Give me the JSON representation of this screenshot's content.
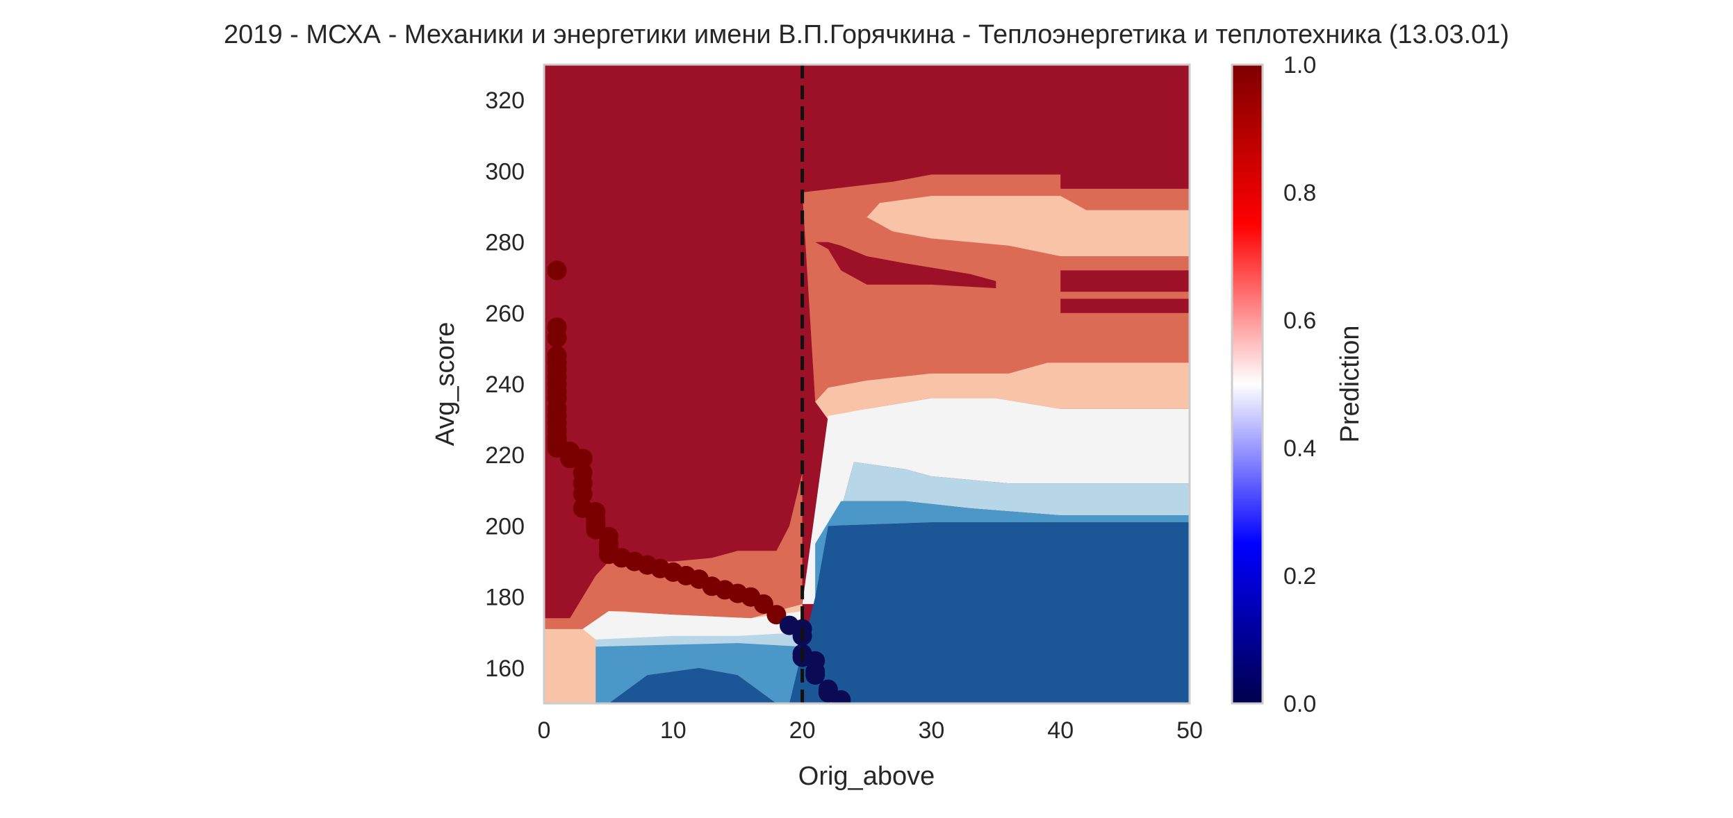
{
  "chart_data": {
    "type": "heatmap",
    "title": "2019 - МСХА - Механики и энергетики имени В.П.Горячкина - Теплоэнергетика и теплотехника (13.03.01)",
    "xlabel": "Orig_above",
    "ylabel": "Avg_score",
    "xlim": [
      0,
      50
    ],
    "ylim": [
      150,
      330
    ],
    "x_ticks": [
      0,
      10,
      20,
      30,
      40,
      50
    ],
    "y_ticks": [
      160,
      180,
      200,
      220,
      240,
      260,
      280,
      300,
      320
    ],
    "grid": false,
    "threshold_line": {
      "x": 20,
      "style": "dashed",
      "color": "#111111"
    },
    "colorbar": {
      "label": "Prediction",
      "range": [
        0,
        1
      ],
      "ticks": [
        "0.0",
        "0.2",
        "0.4",
        "0.6",
        "0.8",
        "1.0"
      ],
      "colormap": "seismic"
    },
    "level_colors": {
      "0.25": "#1b5796",
      "0.35": "#4b98c8",
      "0.45": "#b7d7e8",
      "0.55": "#f4f4f4",
      "0.65": "#f9c3a7",
      "0.75": "#dc6b56",
      "0.85": "#9c1127"
    },
    "regions": [
      {
        "level": 0.85,
        "polygon": [
          [
            0,
            330
          ],
          [
            50,
            330
          ],
          [
            50,
            295
          ],
          [
            40,
            295
          ],
          [
            40,
            299
          ],
          [
            30,
            299
          ],
          [
            27,
            297
          ],
          [
            20,
            294
          ],
          [
            20,
            215
          ],
          [
            19,
            200
          ],
          [
            18,
            193
          ],
          [
            15,
            193
          ],
          [
            13,
            191
          ],
          [
            10,
            190
          ],
          [
            5,
            190
          ],
          [
            4,
            186
          ],
          [
            2,
            174
          ],
          [
            0,
            174
          ]
        ]
      },
      {
        "level": 0.75,
        "polygon": [
          [
            0,
            174
          ],
          [
            2,
            174
          ],
          [
            4,
            186
          ],
          [
            5,
            190
          ],
          [
            10,
            190
          ],
          [
            13,
            191
          ],
          [
            15,
            193
          ],
          [
            18,
            193
          ],
          [
            19,
            200
          ],
          [
            20,
            215
          ],
          [
            20,
            178
          ],
          [
            16,
            174
          ],
          [
            10,
            175
          ],
          [
            6,
            176
          ],
          [
            5,
            176
          ],
          [
            3,
            171
          ],
          [
            0,
            171
          ]
        ]
      },
      {
        "level": 0.75,
        "polygon": [
          [
            20,
            294
          ],
          [
            27,
            297
          ],
          [
            30,
            299
          ],
          [
            40,
            299
          ],
          [
            40,
            295
          ],
          [
            50,
            295
          ],
          [
            50,
            246
          ],
          [
            39,
            246
          ],
          [
            36,
            243
          ],
          [
            30,
            243
          ],
          [
            25,
            241
          ],
          [
            22,
            239
          ],
          [
            21,
            235
          ]
        ]
      },
      {
        "level": 0.85,
        "polygon": [
          [
            21,
            280
          ],
          [
            22,
            278
          ],
          [
            23,
            272
          ],
          [
            25,
            268
          ],
          [
            30,
            268
          ],
          [
            35,
            267
          ],
          [
            35,
            269
          ],
          [
            33,
            271
          ],
          [
            28,
            274
          ],
          [
            25,
            276
          ],
          [
            23,
            279
          ],
          [
            22,
            280
          ]
        ]
      },
      {
        "level": 0.85,
        "polygon": [
          [
            40,
            272
          ],
          [
            50,
            272
          ],
          [
            50,
            266
          ],
          [
            40,
            266
          ]
        ]
      },
      {
        "level": 0.85,
        "polygon": [
          [
            40,
            264
          ],
          [
            50,
            264
          ],
          [
            50,
            260
          ],
          [
            40,
            260
          ]
        ]
      },
      {
        "level": 0.65,
        "polygon": [
          [
            21,
            235
          ],
          [
            22,
            239
          ],
          [
            25,
            241
          ],
          [
            30,
            243
          ],
          [
            36,
            243
          ],
          [
            39,
            246
          ],
          [
            50,
            246
          ],
          [
            50,
            233
          ],
          [
            40,
            233
          ],
          [
            35,
            236
          ],
          [
            30,
            236
          ],
          [
            25,
            233
          ],
          [
            22,
            230
          ]
        ]
      },
      {
        "level": 0.65,
        "polygon": [
          [
            26,
            291
          ],
          [
            30,
            293
          ],
          [
            40,
            293
          ],
          [
            42,
            289
          ],
          [
            50,
            289
          ],
          [
            50,
            276
          ],
          [
            40,
            276
          ],
          [
            36,
            279
          ],
          [
            30,
            281
          ],
          [
            27,
            283
          ],
          [
            25,
            287
          ]
        ]
      },
      {
        "level": 0.65,
        "polygon": [
          [
            0,
            171
          ],
          [
            3,
            171
          ],
          [
            5,
            176
          ],
          [
            6,
            176
          ],
          [
            10,
            175
          ],
          [
            16,
            174
          ],
          [
            20,
            178
          ],
          [
            20,
            160
          ],
          [
            19,
            150
          ],
          [
            0,
            150
          ]
        ]
      },
      {
        "level": 0.55,
        "polygon": [
          [
            20,
            178
          ],
          [
            22,
            231
          ],
          [
            25,
            233
          ],
          [
            30,
            236
          ],
          [
            35,
            236
          ],
          [
            40,
            233
          ],
          [
            50,
            233
          ],
          [
            50,
            212
          ],
          [
            36,
            212
          ],
          [
            30,
            214
          ],
          [
            28,
            216
          ],
          [
            24,
            218
          ],
          [
            21,
            178
          ]
        ]
      },
      {
        "level": 0.55,
        "polygon": [
          [
            3,
            171
          ],
          [
            5,
            176
          ],
          [
            10,
            175
          ],
          [
            16,
            174
          ],
          [
            20,
            176
          ],
          [
            20,
            170
          ],
          [
            15,
            169
          ],
          [
            10,
            169
          ],
          [
            4,
            168
          ]
        ]
      },
      {
        "level": 0.45,
        "polygon": [
          [
            21,
            178
          ],
          [
            24,
            218
          ],
          [
            28,
            216
          ],
          [
            30,
            214
          ],
          [
            36,
            212
          ],
          [
            50,
            212
          ],
          [
            50,
            203
          ],
          [
            40,
            203
          ],
          [
            33,
            205
          ],
          [
            28,
            207
          ],
          [
            23,
            207
          ],
          [
            21,
            195
          ]
        ]
      },
      {
        "level": 0.45,
        "polygon": [
          [
            4,
            168
          ],
          [
            10,
            169
          ],
          [
            15,
            169
          ],
          [
            20,
            170
          ],
          [
            20,
            166
          ],
          [
            15,
            167
          ],
          [
            4,
            166
          ]
        ]
      },
      {
        "level": 0.35,
        "polygon": [
          [
            21,
            195
          ],
          [
            23,
            207
          ],
          [
            28,
            207
          ],
          [
            33,
            205
          ],
          [
            40,
            203
          ],
          [
            50,
            203
          ],
          [
            50,
            201
          ],
          [
            30,
            201
          ],
          [
            22,
            200
          ],
          [
            21,
            180
          ]
        ]
      },
      {
        "level": 0.35,
        "polygon": [
          [
            4,
            166
          ],
          [
            15,
            167
          ],
          [
            20,
            166
          ],
          [
            20,
            150
          ],
          [
            18,
            150
          ],
          [
            15,
            158
          ],
          [
            12,
            160
          ],
          [
            8,
            158
          ],
          [
            5,
            150
          ],
          [
            4,
            150
          ]
        ]
      },
      {
        "level": 0.25,
        "polygon": [
          [
            21,
            180
          ],
          [
            22,
            200
          ],
          [
            30,
            201
          ],
          [
            50,
            201
          ],
          [
            50,
            150
          ],
          [
            19,
            150
          ],
          [
            20,
            165
          ]
        ]
      },
      {
        "level": 0.25,
        "polygon": [
          [
            8,
            158
          ],
          [
            12,
            160
          ],
          [
            15,
            158
          ],
          [
            18,
            150
          ],
          [
            5,
            150
          ]
        ]
      }
    ],
    "series": [
      {
        "color": "#7a0000",
        "x": [
          1,
          1,
          1,
          1,
          1,
          1,
          1,
          1,
          1,
          1,
          1,
          1,
          1,
          1,
          1,
          1,
          1,
          1,
          2,
          2,
          3,
          3,
          3,
          3,
          3,
          4,
          4,
          4,
          4,
          4,
          5,
          5,
          5,
          5,
          6,
          7,
          8,
          9,
          10,
          11,
          11,
          12,
          13,
          14,
          15,
          16,
          17,
          18
        ],
        "y": [
          272,
          256,
          253,
          248,
          246,
          244,
          242,
          240,
          238,
          236,
          233,
          231,
          229,
          227,
          225,
          224,
          223,
          222,
          221,
          219,
          219,
          215,
          212,
          209,
          205,
          204,
          202,
          201,
          200,
          199,
          197,
          195,
          194,
          192,
          191,
          190,
          189,
          188,
          187,
          186,
          186,
          185,
          183,
          182,
          181,
          180,
          178,
          175
        ]
      },
      {
        "color": "#0a0a55",
        "x": [
          19,
          20,
          20,
          20,
          20,
          21,
          21,
          21,
          22,
          22,
          23
        ],
        "y": [
          172,
          171,
          169,
          164,
          163,
          162,
          159,
          158,
          154,
          153,
          151
        ]
      }
    ]
  }
}
